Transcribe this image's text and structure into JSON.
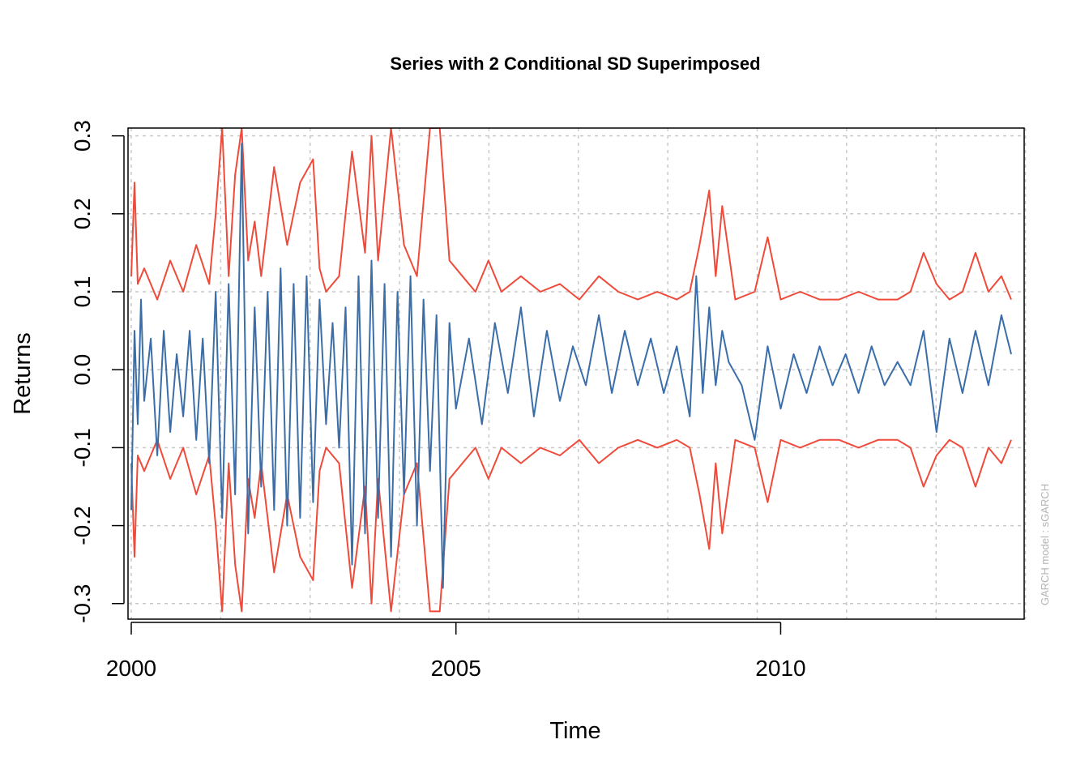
{
  "chart_data": {
    "type": "line",
    "title": "Series with 2 Conditional SD Superimposed",
    "xlabel": "Time",
    "ylabel": "Returns",
    "side_note": "GARCH model :  sGARCH",
    "xlim": [
      1999.95,
      2013.75
    ],
    "ylim": [
      -0.32,
      0.31
    ],
    "x_ticks": [
      2000,
      2005,
      2010
    ],
    "x_tick_labels": [
      "2000",
      "2005",
      "2010"
    ],
    "y_ticks": [
      -0.3,
      -0.2,
      -0.1,
      0.0,
      0.1,
      0.2,
      0.3
    ],
    "y_tick_labels": [
      "-0.3",
      "-0.2",
      "-0.1",
      "0.0",
      "0.1",
      "0.2",
      "0.3"
    ],
    "grid": true,
    "colors": {
      "returns": "#3b6ea8",
      "bands": "#f04a3a",
      "grid": "#c8c8c8"
    },
    "series": [
      {
        "role": "returns",
        "x": [
          2000.0,
          2000.05,
          2000.1,
          2000.15,
          2000.2,
          2000.3,
          2000.4,
          2000.5,
          2000.6,
          2000.7,
          2000.8,
          2000.9,
          2001.0,
          2001.1,
          2001.2,
          2001.3,
          2001.4,
          2001.5,
          2001.6,
          2001.7,
          2001.8,
          2001.9,
          2002.0,
          2002.1,
          2002.2,
          2002.3,
          2002.4,
          2002.5,
          2002.6,
          2002.7,
          2002.8,
          2002.9,
          2003.0,
          2003.1,
          2003.2,
          2003.3,
          2003.4,
          2003.5,
          2003.6,
          2003.7,
          2003.8,
          2003.9,
          2004.0,
          2004.1,
          2004.2,
          2004.3,
          2004.4,
          2004.5,
          2004.6,
          2004.7,
          2004.8,
          2004.9,
          2005.0,
          2005.2,
          2005.4,
          2005.6,
          2005.8,
          2006.0,
          2006.2,
          2006.4,
          2006.6,
          2006.8,
          2007.0,
          2007.2,
          2007.4,
          2007.6,
          2007.8,
          2008.0,
          2008.2,
          2008.4,
          2008.6,
          2008.7,
          2008.8,
          2008.9,
          2009.0,
          2009.1,
          2009.2,
          2009.4,
          2009.6,
          2009.8,
          2010.0,
          2010.2,
          2010.4,
          2010.6,
          2010.8,
          2011.0,
          2011.2,
          2011.4,
          2011.6,
          2011.8,
          2012.0,
          2012.2,
          2012.4,
          2012.6,
          2012.8,
          2013.0,
          2013.2,
          2013.4,
          2013.55
        ],
        "values": [
          -0.18,
          0.05,
          -0.07,
          0.09,
          -0.04,
          0.04,
          -0.11,
          0.05,
          -0.08,
          0.02,
          -0.06,
          0.05,
          -0.09,
          0.04,
          -0.12,
          0.1,
          -0.19,
          0.11,
          -0.16,
          0.29,
          -0.21,
          0.08,
          -0.15,
          0.1,
          -0.18,
          0.13,
          -0.2,
          0.11,
          -0.19,
          0.12,
          -0.17,
          0.09,
          -0.07,
          0.06,
          -0.1,
          0.08,
          -0.25,
          0.12,
          -0.21,
          0.14,
          -0.19,
          0.11,
          -0.24,
          0.1,
          -0.16,
          0.12,
          -0.2,
          0.09,
          -0.13,
          0.07,
          -0.28,
          0.06,
          -0.05,
          0.04,
          -0.07,
          0.06,
          -0.03,
          0.08,
          -0.06,
          0.05,
          -0.04,
          0.03,
          -0.02,
          0.07,
          -0.03,
          0.05,
          -0.02,
          0.04,
          -0.03,
          0.03,
          -0.06,
          0.12,
          -0.03,
          0.08,
          -0.02,
          0.05,
          0.01,
          -0.02,
          -0.09,
          0.03,
          -0.05,
          0.02,
          -0.03,
          0.03,
          -0.02,
          0.02,
          -0.03,
          0.03,
          -0.02,
          0.01,
          -0.02,
          0.05,
          -0.08,
          0.04,
          -0.03,
          0.05,
          -0.02,
          0.07,
          0.02
        ]
      },
      {
        "role": "upper band (+2 SD)",
        "x": [
          2000.0,
          2000.05,
          2000.1,
          2000.2,
          2000.4,
          2000.6,
          2000.8,
          2001.0,
          2001.2,
          2001.3,
          2001.4,
          2001.5,
          2001.6,
          2001.7,
          2001.8,
          2001.9,
          2002.0,
          2002.2,
          2002.4,
          2002.6,
          2002.8,
          2002.9,
          2003.0,
          2003.2,
          2003.4,
          2003.6,
          2003.7,
          2003.8,
          2004.0,
          2004.2,
          2004.4,
          2004.6,
          2004.75,
          2004.9,
          2005.1,
          2005.3,
          2005.5,
          2005.7,
          2006.0,
          2006.3,
          2006.6,
          2006.9,
          2007.2,
          2007.5,
          2007.8,
          2008.1,
          2008.4,
          2008.6,
          2008.75,
          2008.9,
          2009.0,
          2009.1,
          2009.3,
          2009.6,
          2009.8,
          2010.0,
          2010.3,
          2010.6,
          2010.9,
          2011.2,
          2011.5,
          2011.8,
          2012.0,
          2012.2,
          2012.4,
          2012.6,
          2012.8,
          2013.0,
          2013.2,
          2013.4,
          2013.55
        ],
        "values": [
          0.12,
          0.24,
          0.11,
          0.13,
          0.09,
          0.14,
          0.1,
          0.16,
          0.11,
          0.2,
          0.31,
          0.12,
          0.25,
          0.31,
          0.14,
          0.19,
          0.12,
          0.26,
          0.16,
          0.24,
          0.27,
          0.13,
          0.1,
          0.12,
          0.28,
          0.15,
          0.3,
          0.14,
          0.31,
          0.16,
          0.12,
          0.31,
          0.31,
          0.14,
          0.12,
          0.1,
          0.14,
          0.1,
          0.12,
          0.1,
          0.11,
          0.09,
          0.12,
          0.1,
          0.09,
          0.1,
          0.09,
          0.1,
          0.16,
          0.23,
          0.12,
          0.21,
          0.09,
          0.1,
          0.17,
          0.09,
          0.1,
          0.09,
          0.09,
          0.1,
          0.09,
          0.09,
          0.1,
          0.15,
          0.11,
          0.09,
          0.1,
          0.15,
          0.1,
          0.12,
          0.09
        ]
      },
      {
        "role": "lower band (-2 SD)",
        "x": [
          2000.0,
          2000.05,
          2000.1,
          2000.2,
          2000.4,
          2000.6,
          2000.8,
          2001.0,
          2001.2,
          2001.3,
          2001.4,
          2001.5,
          2001.6,
          2001.7,
          2001.8,
          2001.9,
          2002.0,
          2002.2,
          2002.4,
          2002.6,
          2002.8,
          2002.9,
          2003.0,
          2003.2,
          2003.4,
          2003.6,
          2003.7,
          2003.8,
          2004.0,
          2004.2,
          2004.4,
          2004.6,
          2004.75,
          2004.9,
          2005.1,
          2005.3,
          2005.5,
          2005.7,
          2006.0,
          2006.3,
          2006.6,
          2006.9,
          2007.2,
          2007.5,
          2007.8,
          2008.1,
          2008.4,
          2008.6,
          2008.75,
          2008.9,
          2009.0,
          2009.1,
          2009.3,
          2009.6,
          2009.8,
          2010.0,
          2010.3,
          2010.6,
          2010.9,
          2011.2,
          2011.5,
          2011.8,
          2012.0,
          2012.2,
          2012.4,
          2012.6,
          2012.8,
          2013.0,
          2013.2,
          2013.4,
          2013.55
        ],
        "values": [
          -0.12,
          -0.24,
          -0.11,
          -0.13,
          -0.09,
          -0.14,
          -0.1,
          -0.16,
          -0.11,
          -0.2,
          -0.31,
          -0.12,
          -0.25,
          -0.31,
          -0.14,
          -0.19,
          -0.12,
          -0.26,
          -0.16,
          -0.24,
          -0.27,
          -0.13,
          -0.1,
          -0.12,
          -0.28,
          -0.15,
          -0.3,
          -0.14,
          -0.31,
          -0.16,
          -0.12,
          -0.31,
          -0.31,
          -0.14,
          -0.12,
          -0.1,
          -0.14,
          -0.1,
          -0.12,
          -0.1,
          -0.11,
          -0.09,
          -0.12,
          -0.1,
          -0.09,
          -0.1,
          -0.09,
          -0.1,
          -0.16,
          -0.23,
          -0.12,
          -0.21,
          -0.09,
          -0.1,
          -0.17,
          -0.09,
          -0.1,
          -0.09,
          -0.09,
          -0.1,
          -0.09,
          -0.09,
          -0.1,
          -0.15,
          -0.11,
          -0.09,
          -0.1,
          -0.15,
          -0.1,
          -0.12,
          -0.09
        ]
      }
    ]
  }
}
